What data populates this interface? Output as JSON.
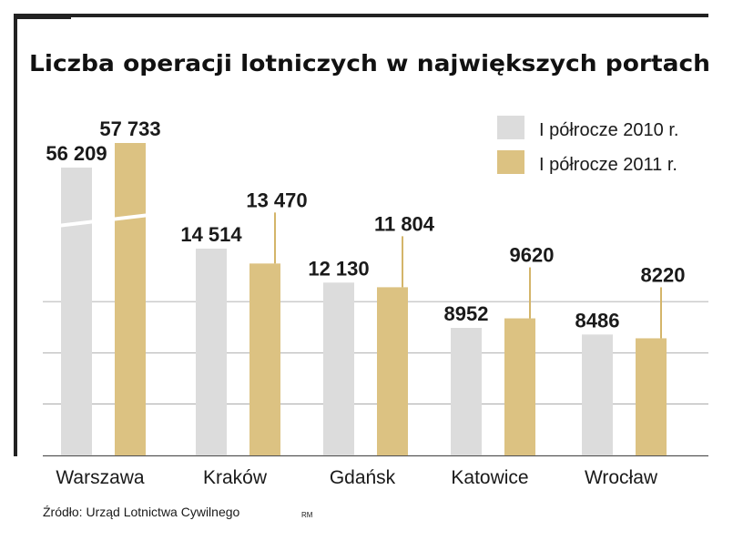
{
  "title": "Liczba operacji lotniczych w największych portach",
  "source": "Źródło: Urząd Lotnictwa Cywilnego",
  "author_mark": "RM",
  "colors": {
    "series_2010": "#dcdcdc",
    "series_2011": "#dcc282",
    "gridline": "#9a9a9a",
    "frame": "#222222",
    "connector": "#d4b56a"
  },
  "chart_data": {
    "type": "bar",
    "title": "Liczba operacji lotniczych w największych portach",
    "xlabel": "",
    "ylabel": "",
    "grid": true,
    "legend_position": "top-right",
    "broken_axis_category": "Warszawa",
    "categories": [
      "Warszawa",
      "Kraków",
      "Gdańsk",
      "Katowice",
      "Wrocław"
    ],
    "series": [
      {
        "name": "I półrocze 2010 r.",
        "values": [
          56209,
          14514,
          12130,
          8952,
          8486
        ],
        "labels": [
          "56 209",
          "14 514",
          "12 130",
          "8952",
          "8486"
        ]
      },
      {
        "name": "I półrocze 2011 r.",
        "values": [
          57733,
          13470,
          11804,
          9620,
          8220
        ],
        "labels": [
          "57 733",
          "13 470",
          "11 804",
          "9620",
          "8220"
        ]
      }
    ]
  }
}
